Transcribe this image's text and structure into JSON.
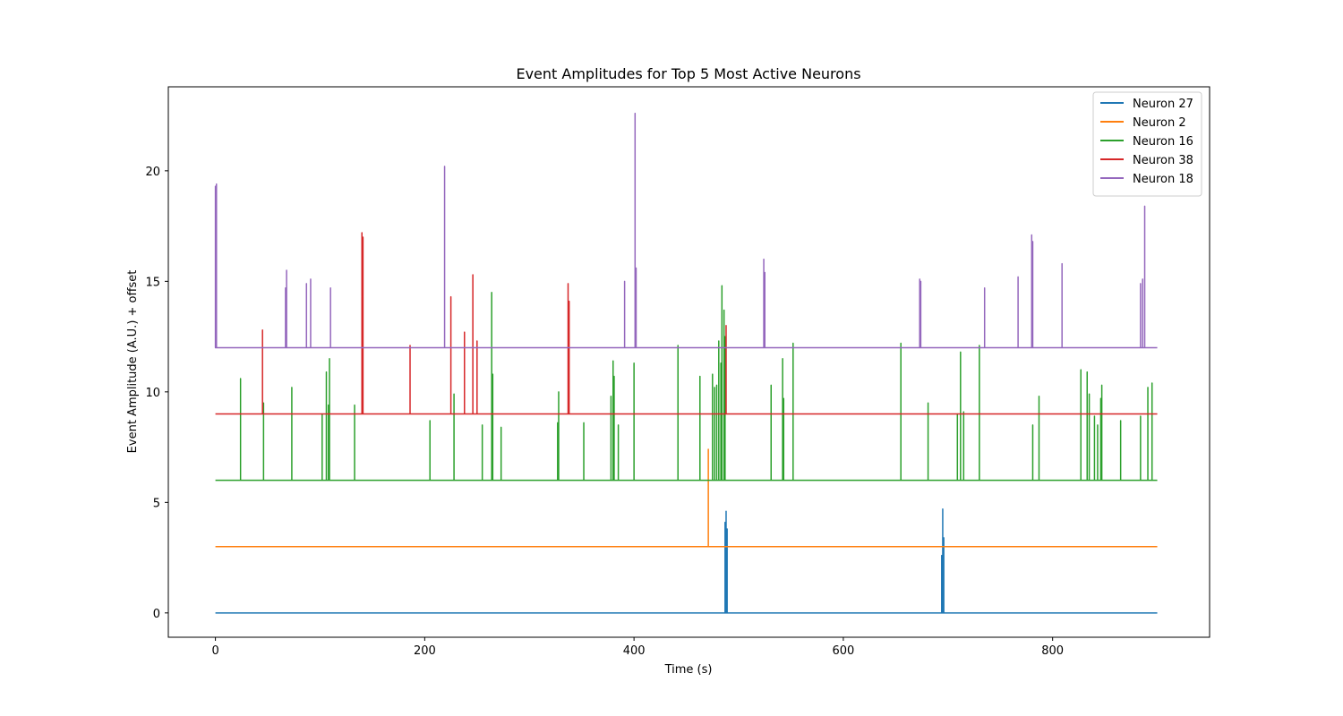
{
  "chart_data": {
    "type": "line",
    "title": "Event Amplitudes for Top 5 Most Active Neurons",
    "xlabel": "Time (s)",
    "ylabel": "Event Amplitude (A.U.) + offset",
    "xlim": [
      -45,
      950
    ],
    "ylim": [
      -1.1,
      23.8
    ],
    "xticks": [
      0,
      200,
      400,
      600,
      800
    ],
    "yticks": [
      0,
      5,
      10,
      15,
      20
    ],
    "legend_position": "top-right",
    "t_end": 900,
    "series": [
      {
        "name": "Neuron 27",
        "color": "#1f77b4",
        "offset": 0,
        "events": [
          [
            487,
            4.1
          ],
          [
            488,
            4.6
          ],
          [
            489,
            3.8
          ],
          [
            694,
            2.6
          ],
          [
            695,
            4.7
          ],
          [
            696,
            3.4
          ]
        ]
      },
      {
        "name": "Neuron 2",
        "color": "#ff7f0e",
        "offset": 3,
        "events": [
          [
            471,
            4.4
          ]
        ]
      },
      {
        "name": "Neuron 16",
        "color": "#2ca02c",
        "offset": 6,
        "events": [
          [
            24,
            4.6
          ],
          [
            46,
            3.5
          ],
          [
            73,
            4.2
          ],
          [
            102,
            3.0
          ],
          [
            106,
            4.9
          ],
          [
            108,
            3.4
          ],
          [
            109,
            5.5
          ],
          [
            133,
            3.4
          ],
          [
            205,
            2.7
          ],
          [
            228,
            3.9
          ],
          [
            255,
            2.5
          ],
          [
            264,
            8.5
          ],
          [
            265,
            4.8
          ],
          [
            273,
            2.4
          ],
          [
            327,
            2.6
          ],
          [
            328,
            4.0
          ],
          [
            352,
            2.6
          ],
          [
            378,
            3.8
          ],
          [
            380,
            5.4
          ],
          [
            381,
            4.7
          ],
          [
            385,
            2.5
          ],
          [
            400,
            5.3
          ],
          [
            442,
            6.1
          ],
          [
            463,
            4.7
          ],
          [
            475,
            4.8
          ],
          [
            477,
            4.2
          ],
          [
            479,
            4.3
          ],
          [
            481,
            6.3
          ],
          [
            483,
            5.3
          ],
          [
            484,
            8.8
          ],
          [
            486,
            7.7
          ],
          [
            487,
            6.5
          ],
          [
            531,
            4.3
          ],
          [
            542,
            5.5
          ],
          [
            543,
            3.7
          ],
          [
            552,
            6.2
          ],
          [
            655,
            6.2
          ],
          [
            681,
            3.5
          ],
          [
            709,
            3.0
          ],
          [
            712,
            5.8
          ],
          [
            715,
            3.1
          ],
          [
            730,
            6.1
          ],
          [
            781,
            2.5
          ],
          [
            787,
            3.8
          ],
          [
            827,
            5.0
          ],
          [
            833,
            4.9
          ],
          [
            835,
            3.9
          ],
          [
            840,
            2.9
          ],
          [
            843,
            2.5
          ],
          [
            846,
            3.7
          ],
          [
            847,
            4.3
          ],
          [
            865,
            2.7
          ],
          [
            884,
            2.9
          ],
          [
            891,
            4.2
          ],
          [
            895,
            4.4
          ]
        ]
      },
      {
        "name": "Neuron 38",
        "color": "#d62728",
        "offset": 9,
        "events": [
          [
            45,
            3.8
          ],
          [
            140,
            8.2
          ],
          [
            141,
            8.0
          ],
          [
            186,
            3.1
          ],
          [
            225,
            5.3
          ],
          [
            238,
            3.7
          ],
          [
            246,
            6.3
          ],
          [
            250,
            3.3
          ],
          [
            337,
            5.9
          ],
          [
            338,
            5.1
          ],
          [
            488,
            4.0
          ]
        ]
      },
      {
        "name": "Neuron 18",
        "color": "#9467bd",
        "offset": 12,
        "events": [
          [
            0,
            7.3
          ],
          [
            1,
            7.4
          ],
          [
            67,
            2.7
          ],
          [
            68,
            3.5
          ],
          [
            87,
            2.9
          ],
          [
            91,
            3.1
          ],
          [
            110,
            2.7
          ],
          [
            219,
            8.2
          ],
          [
            391,
            3.0
          ],
          [
            401,
            10.6
          ],
          [
            402,
            3.6
          ],
          [
            524,
            4.0
          ],
          [
            525,
            3.4
          ],
          [
            673,
            3.1
          ],
          [
            674,
            3.0
          ],
          [
            735,
            2.7
          ],
          [
            767,
            3.2
          ],
          [
            780,
            5.1
          ],
          [
            781,
            4.8
          ],
          [
            809,
            3.8
          ],
          [
            884,
            2.9
          ],
          [
            886,
            3.1
          ],
          [
            888,
            6.4
          ]
        ]
      }
    ]
  }
}
